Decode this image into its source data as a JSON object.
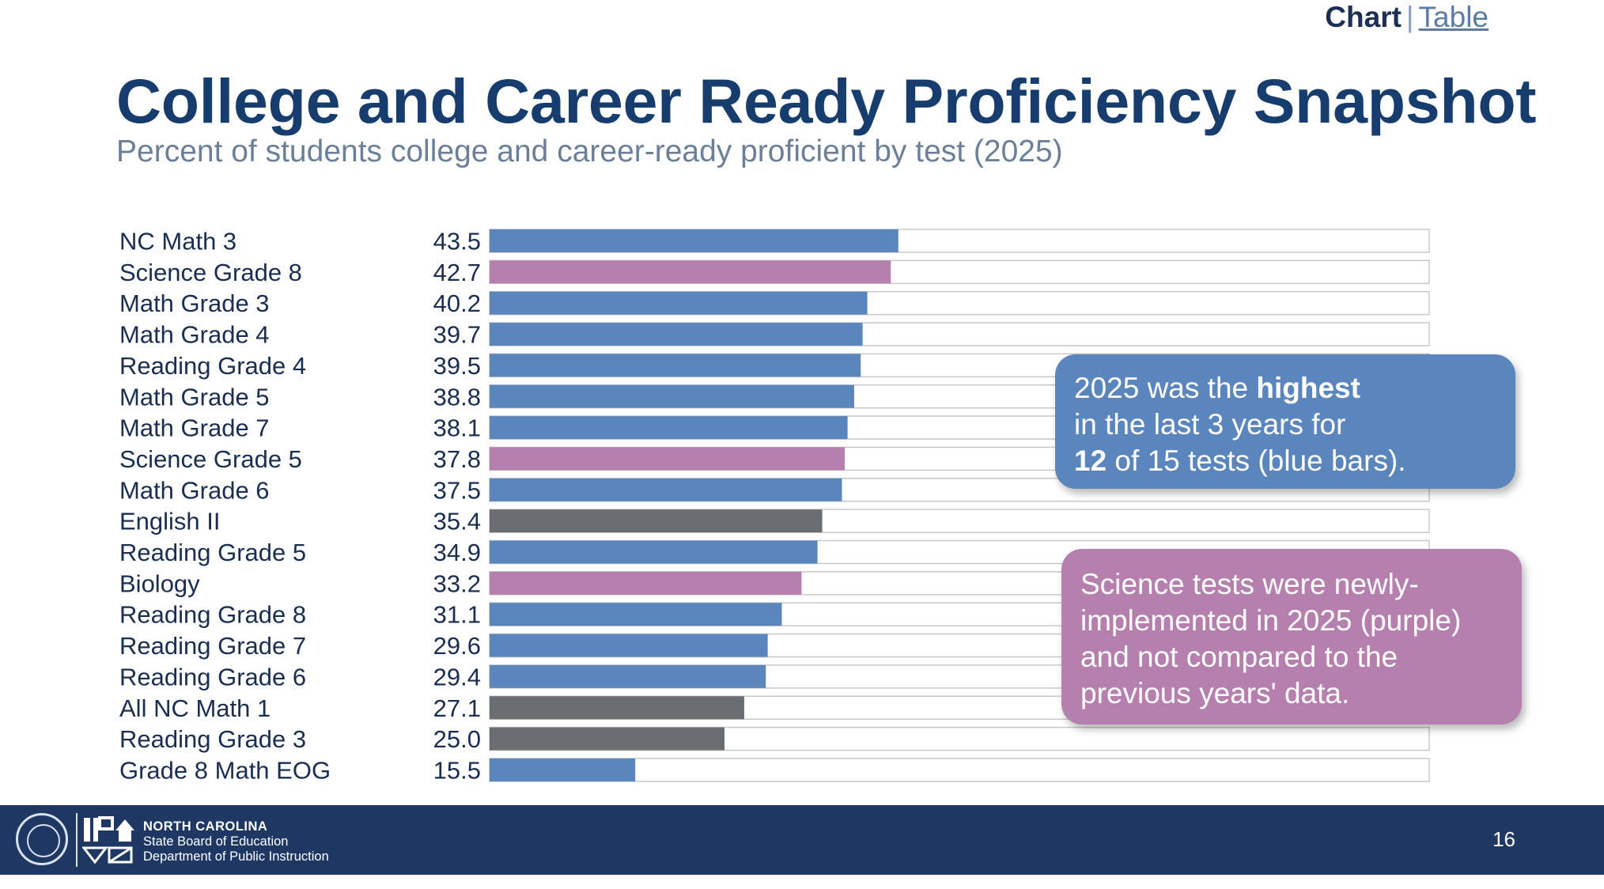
{
  "nav": {
    "chart_label": "Chart",
    "separator": "|",
    "table_label": "Table"
  },
  "header": {
    "title": "College and Career Ready Proficiency Snapshot",
    "subtitle": "Percent of students college and career-ready proficient by test (2025)"
  },
  "chart_data": {
    "type": "bar",
    "orientation": "horizontal",
    "title": "College and Career Ready Proficiency Snapshot",
    "subtitle": "Percent of students college and career-ready proficient by test (2025)",
    "xlim": [
      0,
      100
    ],
    "grid": false,
    "legend": "none",
    "categories": [
      "NC Math 3",
      "Science Grade 8",
      "Math Grade 3",
      "Math Grade 4",
      "Reading Grade 4",
      "Math Grade 5",
      "Math Grade 7",
      "Science Grade 5",
      "Math Grade 6",
      "English II",
      "Reading Grade 5",
      "Biology",
      "Reading Grade 8",
      "Reading Grade 7",
      "Reading Grade 6",
      "All NC Math 1",
      "Reading Grade 3",
      "Grade 8 Math EOG"
    ],
    "values": [
      43.5,
      42.7,
      40.2,
      39.7,
      39.5,
      38.8,
      38.1,
      37.8,
      37.5,
      35.4,
      34.9,
      33.2,
      31.1,
      29.6,
      29.4,
      27.1,
      25.0,
      15.5
    ],
    "value_labels": [
      "43.5",
      "42.7",
      "40.2",
      "39.7",
      "39.5",
      "38.8",
      "38.1",
      "37.8",
      "37.5",
      "35.4",
      "34.9",
      "33.2",
      "31.1",
      "29.6",
      "29.4",
      "27.1",
      "25.0",
      "15.5"
    ],
    "groups": [
      "blue",
      "purple",
      "blue",
      "blue",
      "blue",
      "blue",
      "blue",
      "purple",
      "blue",
      "gray",
      "blue",
      "purple",
      "blue",
      "blue",
      "blue",
      "gray",
      "gray",
      "blue"
    ],
    "colors": {
      "blue": "#5b86bd",
      "purple": "#b57fae",
      "gray": "#6b6e70",
      "track_border": "#c8c8c8",
      "label": "#1a2e52"
    }
  },
  "callouts": {
    "blue": {
      "line1_pre": "2025 was the ",
      "line1_bold": "highest",
      "line2": "in the last 3 years for",
      "line3_bold": "12",
      "line3_rest": " of 15 tests (blue bars)."
    },
    "purple": {
      "line1": "Science tests were newly-",
      "line2": "implemented in 2025 (purple)",
      "line3": "and not compared to the",
      "line4": "previous years' data."
    }
  },
  "footer": {
    "org_line1": "NORTH CAROLINA",
    "org_line2": "State Board of Education",
    "org_line3": "Department of Public Instruction",
    "page_number": "16",
    "seal_icon": "state-board-seal-icon",
    "logo_icon": "dpi-logo-icon"
  }
}
